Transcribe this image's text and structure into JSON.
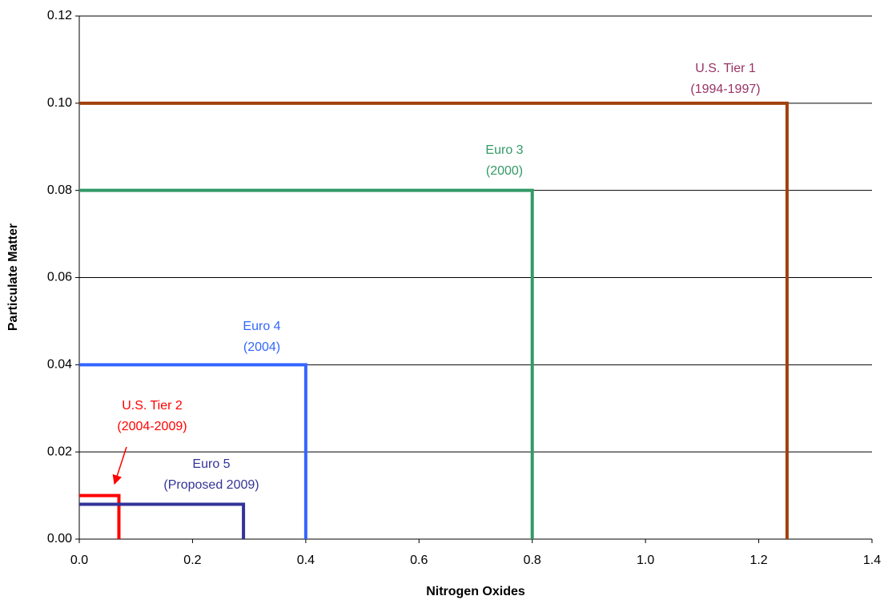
{
  "chart_data": {
    "type": "line",
    "x_label": "Nitrogen Oxides",
    "y_label": "Particulate Matter",
    "xlim": [
      0,
      1.4
    ],
    "ylim": [
      0,
      0.12
    ],
    "xticks": [
      {
        "value": 0,
        "label": "0.0"
      },
      0.2,
      0.4,
      0.6,
      0.8,
      {
        "value": 1,
        "label": "1.0"
      },
      1.2,
      1.4
    ],
    "yticks": [
      {
        "value": 0,
        "label": "0.00"
      },
      {
        "value": 0.02,
        "label": "0.02"
      },
      {
        "value": 0.04,
        "label": "0.04"
      },
      {
        "value": 0.06,
        "label": "0.06"
      },
      {
        "value": 0.08,
        "label": "0.08"
      },
      {
        "value": 0.1,
        "label": "0.10"
      },
      {
        "value": 0.12,
        "label": "0.12"
      }
    ],
    "grid": true,
    "series": [
      {
        "name": "U.S. Tier 1",
        "period": "(1994-1997)",
        "color": "#a0410d",
        "label_color": "#993366",
        "x": [
          0,
          1.25,
          1.25
        ],
        "values": [
          0.1,
          0.1,
          0
        ]
      },
      {
        "name": "Euro 3",
        "period": "(2000)",
        "color": "#339966",
        "x": [
          0,
          0.8,
          0.8
        ],
        "values": [
          0.08,
          0.08,
          0
        ]
      },
      {
        "name": "Euro 4",
        "period": "(2004)",
        "color": "#3366ff",
        "x": [
          0,
          0.4,
          0.4
        ],
        "values": [
          0.04,
          0.04,
          0
        ]
      },
      {
        "name": "U.S. Tier 2",
        "period": "(2004-2009)",
        "color": "#ff0000",
        "arrow": true,
        "x": [
          0,
          0.07,
          0.07
        ],
        "values": [
          0.01,
          0.01,
          0
        ]
      },
      {
        "name": "Euro 5",
        "period": "(Proposed 2009)",
        "color": "#333399",
        "x": [
          0,
          0.29,
          0.29
        ],
        "values": [
          0.008,
          0.008,
          0
        ]
      }
    ]
  }
}
